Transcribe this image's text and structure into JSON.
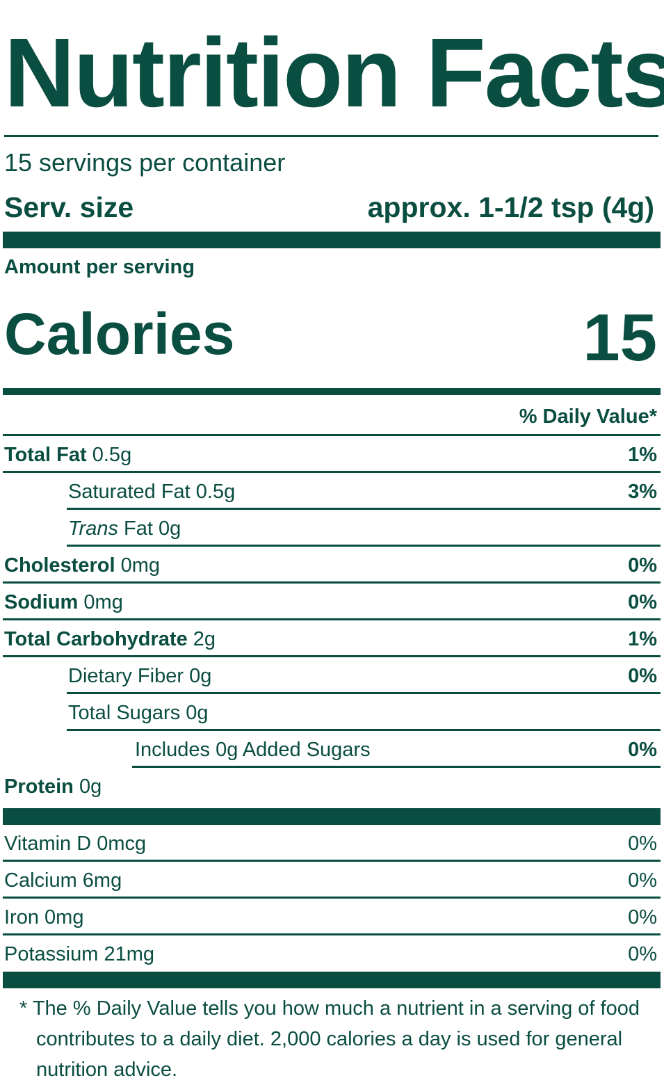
{
  "title": "Nutrition Facts",
  "servings_per_container": "15 servings per container",
  "serving_size": {
    "label": "Serv. size",
    "value": "approx. 1-1/2 tsp (4g)"
  },
  "amount_per_serving": "Amount per serving",
  "calories": {
    "label": "Calories",
    "value": "15"
  },
  "daily_value_header": "% Daily Value*",
  "nutrients": [
    {
      "name": "Total Fat",
      "amount": "0.5g",
      "dv": "1%"
    },
    {
      "name": "Saturated Fat",
      "amount": "0.5g",
      "dv": "3%"
    },
    {
      "name": "Trans",
      "name_suffix": "Fat",
      "amount": "0g",
      "dv": ""
    },
    {
      "name": "Cholesterol",
      "amount": "0mg",
      "dv": "0%"
    },
    {
      "name": "Sodium",
      "amount": "0mg",
      "dv": "0%"
    },
    {
      "name": "Total Carbohydrate",
      "amount": "2g",
      "dv": "1%"
    },
    {
      "name": "Dietary Fiber",
      "amount": "0g",
      "dv": "0%"
    },
    {
      "name": "Total Sugars",
      "amount": "0g",
      "dv": ""
    },
    {
      "name": "Includes 0g Added Sugars",
      "amount": "",
      "dv": "0%"
    },
    {
      "name": "Protein",
      "amount": "0g",
      "dv": ""
    }
  ],
  "vitamins": [
    {
      "name": "Vitamin D 0mcg",
      "dv": "0%"
    },
    {
      "name": "Calcium 6mg",
      "dv": "0%"
    },
    {
      "name": "Iron 0mg",
      "dv": "0%"
    },
    {
      "name": "Potassium 21mg",
      "dv": "0%"
    }
  ],
  "footnote": "* The % Daily Value tells you how much a nutrient in a serving of food contributes to a daily diet. 2,000 calories a day is used for general nutrition advice.",
  "colors": {
    "ink": "#0a4d41",
    "background": "#ffffff"
  }
}
